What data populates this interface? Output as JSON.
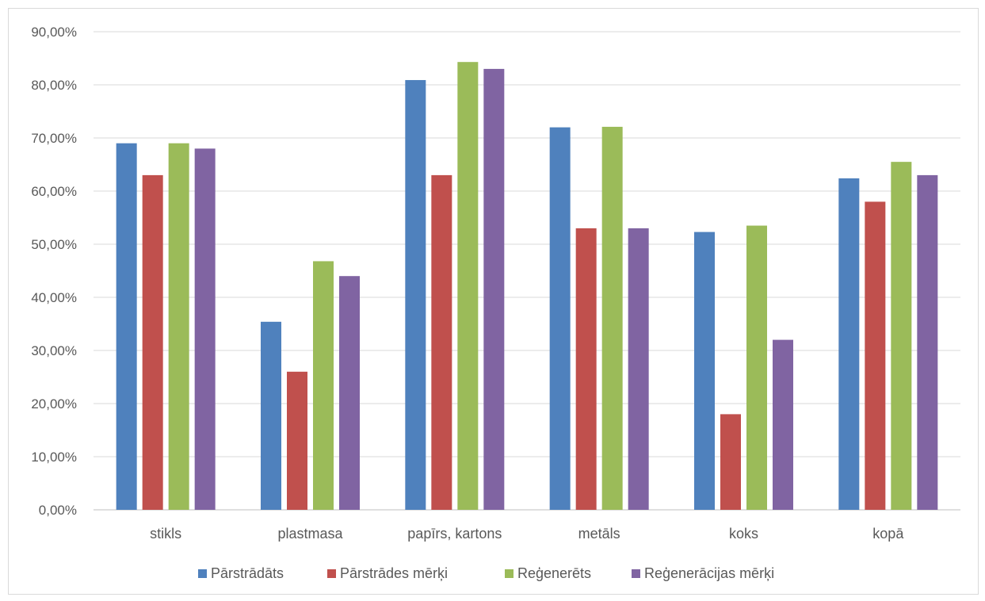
{
  "chart_data": {
    "type": "bar",
    "title": "",
    "xlabel": "",
    "ylabel": "",
    "categories": [
      "stikls",
      "plastmasa",
      "papīrs, kartons",
      "metāls",
      "koks",
      "kopā"
    ],
    "ylim": [
      0,
      0.9
    ],
    "yticks": [
      "0,00%",
      "10,00%",
      "20,00%",
      "30,00%",
      "40,00%",
      "50,00%",
      "60,00%",
      "70,00%",
      "80,00%",
      "90,00%"
    ],
    "grid": true,
    "legend_position": "bottom",
    "series": [
      {
        "name": "Pārstrādāts",
        "color": "#4f81bd",
        "values": [
          0.69,
          0.354,
          0.809,
          0.72,
          0.523,
          0.624
        ]
      },
      {
        "name": "Pārstrādes mērķi",
        "color": "#c0504d",
        "values": [
          0.63,
          0.26,
          0.63,
          0.53,
          0.18,
          0.58
        ]
      },
      {
        "name": "Reģenerēts",
        "color": "#9bbb59",
        "values": [
          0.69,
          0.468,
          0.843,
          0.721,
          0.535,
          0.655
        ]
      },
      {
        "name": "Reģenerācijas mērķi",
        "color": "#8064a2",
        "values": [
          0.68,
          0.44,
          0.83,
          0.53,
          0.32,
          0.63
        ]
      }
    ]
  }
}
